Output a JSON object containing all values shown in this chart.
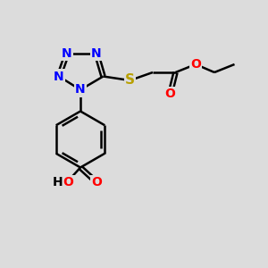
{
  "bg_color": "#dcdcdc",
  "atom_colors": {
    "N": "#0000ff",
    "O": "#ff0000",
    "S": "#b8a000",
    "C": "#000000",
    "H": "#000000"
  },
  "bond_color": "#000000",
  "bond_lw": 1.8,
  "font_size": 10,
  "xlim": [
    0,
    10
  ],
  "ylim": [
    0,
    10
  ]
}
